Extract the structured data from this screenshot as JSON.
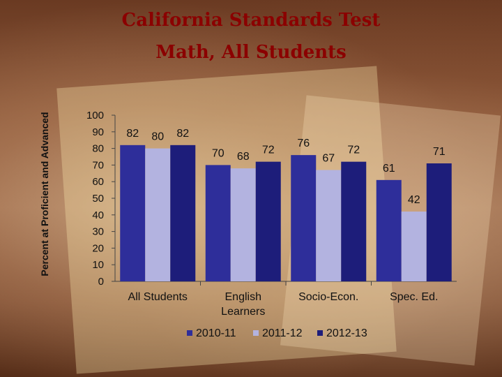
{
  "title_line1": "California Standards Test",
  "title_line2": "Math, All Students",
  "chart_data": {
    "type": "bar",
    "title": "California Standards Test Math, All Students",
    "ylabel": "Percent at Proficient and Advanced",
    "xlabel": "",
    "ylim": [
      0,
      100
    ],
    "yticks": [
      "0",
      "10",
      "20",
      "30",
      "40",
      "50",
      "60",
      "70",
      "80",
      "90",
      "100"
    ],
    "categories": [
      {
        "label_lines": [
          "All Students"
        ]
      },
      {
        "label_lines": [
          "English",
          "Learners"
        ]
      },
      {
        "label_lines": [
          "Socio-Econ."
        ]
      },
      {
        "label_lines": [
          "Spec. Ed."
        ]
      }
    ],
    "series": [
      {
        "name": "2010-11",
        "color": "#2e2e9a",
        "values": [
          82,
          70,
          76,
          61
        ]
      },
      {
        "name": "2011-12",
        "color": "#b3b3e0",
        "values": [
          80,
          68,
          67,
          42
        ]
      },
      {
        "name": "2012-13",
        "color": "#1d1d7a",
        "values": [
          82,
          72,
          72,
          71
        ]
      }
    ],
    "data_labels": true,
    "legend_position": "bottom",
    "grid": false
  }
}
